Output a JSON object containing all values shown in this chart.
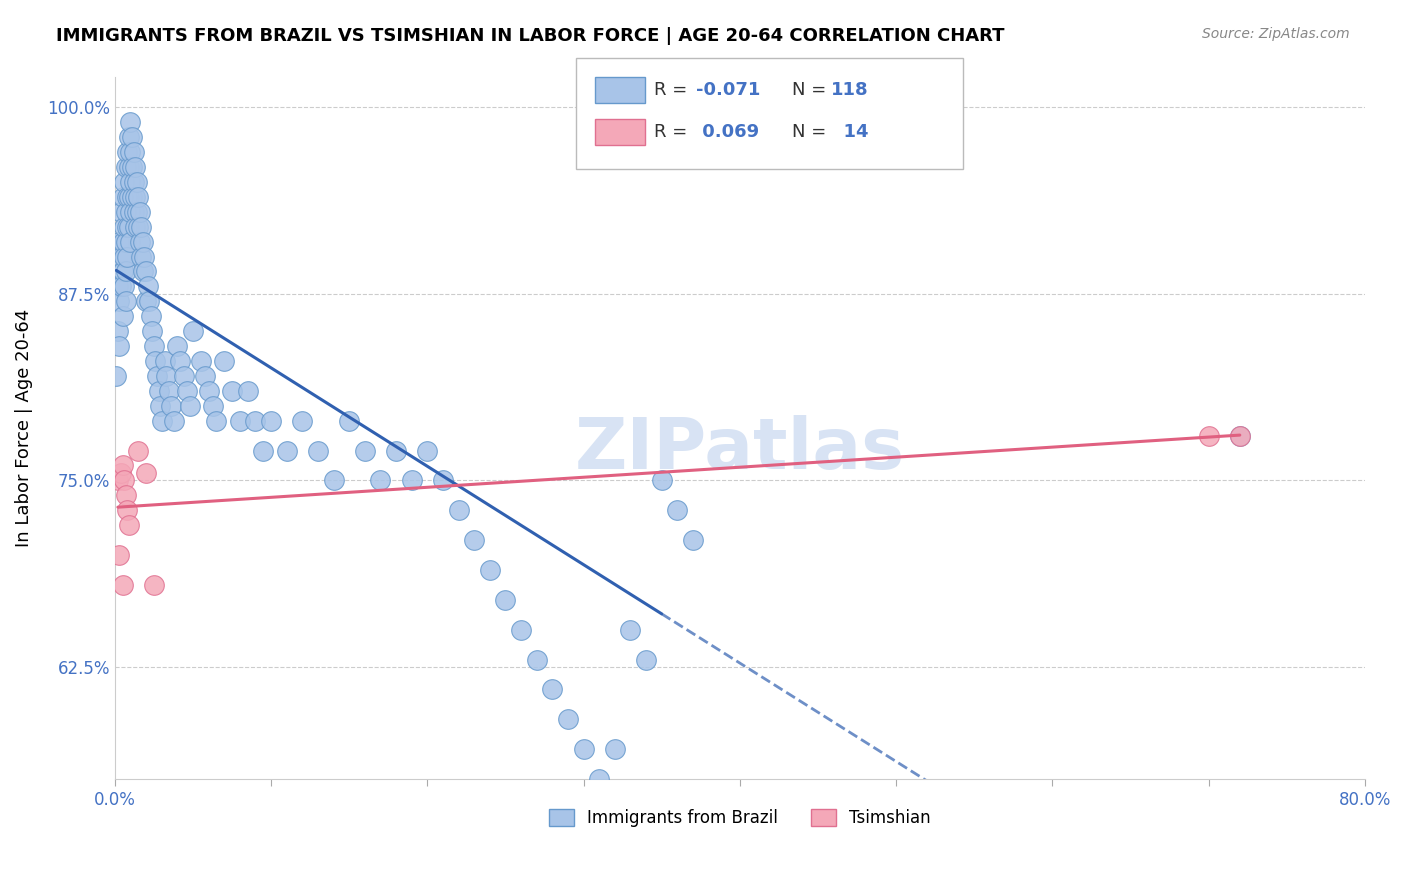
{
  "title": "IMMIGRANTS FROM BRAZIL VS TSIMSHIAN IN LABOR FORCE | AGE 20-64 CORRELATION CHART",
  "source": "Source: ZipAtlas.com",
  "ylabel": "In Labor Force | Age 20-64",
  "xlim": [
    0.0,
    0.8
  ],
  "ylim": [
    0.55,
    1.02
  ],
  "brazil_color": "#a8c4e8",
  "brazil_edge_color": "#6699cc",
  "tsimshian_color": "#f4a8b8",
  "tsimshian_edge_color": "#e07090",
  "brazil_R": -0.071,
  "brazil_N": 118,
  "tsimshian_R": 0.069,
  "tsimshian_N": 14,
  "brazil_line_color": "#3060b0",
  "tsimshian_line_color": "#e06080",
  "watermark": "ZIPatlas",
  "watermark_color": "#c8d8f0",
  "brazil_x": [
    0.001,
    0.002,
    0.002,
    0.003,
    0.003,
    0.003,
    0.004,
    0.004,
    0.004,
    0.005,
    0.005,
    0.005,
    0.005,
    0.006,
    0.006,
    0.006,
    0.006,
    0.007,
    0.007,
    0.007,
    0.007,
    0.007,
    0.008,
    0.008,
    0.008,
    0.008,
    0.009,
    0.009,
    0.009,
    0.009,
    0.01,
    0.01,
    0.01,
    0.01,
    0.01,
    0.011,
    0.011,
    0.011,
    0.012,
    0.012,
    0.012,
    0.013,
    0.013,
    0.013,
    0.014,
    0.014,
    0.015,
    0.015,
    0.016,
    0.016,
    0.017,
    0.017,
    0.018,
    0.018,
    0.019,
    0.02,
    0.02,
    0.021,
    0.022,
    0.023,
    0.024,
    0.025,
    0.026,
    0.027,
    0.028,
    0.029,
    0.03,
    0.032,
    0.033,
    0.035,
    0.036,
    0.038,
    0.04,
    0.042,
    0.044,
    0.046,
    0.048,
    0.05,
    0.055,
    0.058,
    0.06,
    0.063,
    0.065,
    0.07,
    0.075,
    0.08,
    0.085,
    0.09,
    0.095,
    0.1,
    0.11,
    0.12,
    0.13,
    0.14,
    0.15,
    0.16,
    0.17,
    0.18,
    0.19,
    0.2,
    0.21,
    0.22,
    0.23,
    0.24,
    0.25,
    0.26,
    0.27,
    0.28,
    0.29,
    0.3,
    0.31,
    0.32,
    0.33,
    0.34,
    0.35,
    0.36,
    0.37,
    0.72
  ],
  "brazil_y": [
    0.82,
    0.88,
    0.85,
    0.91,
    0.87,
    0.84,
    0.93,
    0.9,
    0.88,
    0.86,
    0.94,
    0.91,
    0.89,
    0.95,
    0.92,
    0.9,
    0.88,
    0.96,
    0.93,
    0.91,
    0.89,
    0.87,
    0.97,
    0.94,
    0.92,
    0.9,
    0.98,
    0.96,
    0.94,
    0.92,
    0.99,
    0.97,
    0.95,
    0.93,
    0.91,
    0.98,
    0.96,
    0.94,
    0.97,
    0.95,
    0.93,
    0.96,
    0.94,
    0.92,
    0.95,
    0.93,
    0.94,
    0.92,
    0.93,
    0.91,
    0.92,
    0.9,
    0.91,
    0.89,
    0.9,
    0.89,
    0.87,
    0.88,
    0.87,
    0.86,
    0.85,
    0.84,
    0.83,
    0.82,
    0.81,
    0.8,
    0.79,
    0.83,
    0.82,
    0.81,
    0.8,
    0.79,
    0.84,
    0.83,
    0.82,
    0.81,
    0.8,
    0.85,
    0.83,
    0.82,
    0.81,
    0.8,
    0.79,
    0.83,
    0.81,
    0.79,
    0.81,
    0.79,
    0.77,
    0.79,
    0.77,
    0.79,
    0.77,
    0.75,
    0.79,
    0.77,
    0.75,
    0.77,
    0.75,
    0.77,
    0.75,
    0.73,
    0.71,
    0.69,
    0.67,
    0.65,
    0.63,
    0.61,
    0.59,
    0.57,
    0.55,
    0.57,
    0.65,
    0.63,
    0.75,
    0.73,
    0.71,
    0.78
  ],
  "tsimshian_x": [
    0.002,
    0.003,
    0.004,
    0.005,
    0.005,
    0.006,
    0.007,
    0.008,
    0.009,
    0.015,
    0.02,
    0.025,
    0.7,
    0.72
  ],
  "tsimshian_y": [
    0.75,
    0.7,
    0.755,
    0.76,
    0.68,
    0.75,
    0.74,
    0.73,
    0.72,
    0.77,
    0.755,
    0.68,
    0.78,
    0.78
  ]
}
